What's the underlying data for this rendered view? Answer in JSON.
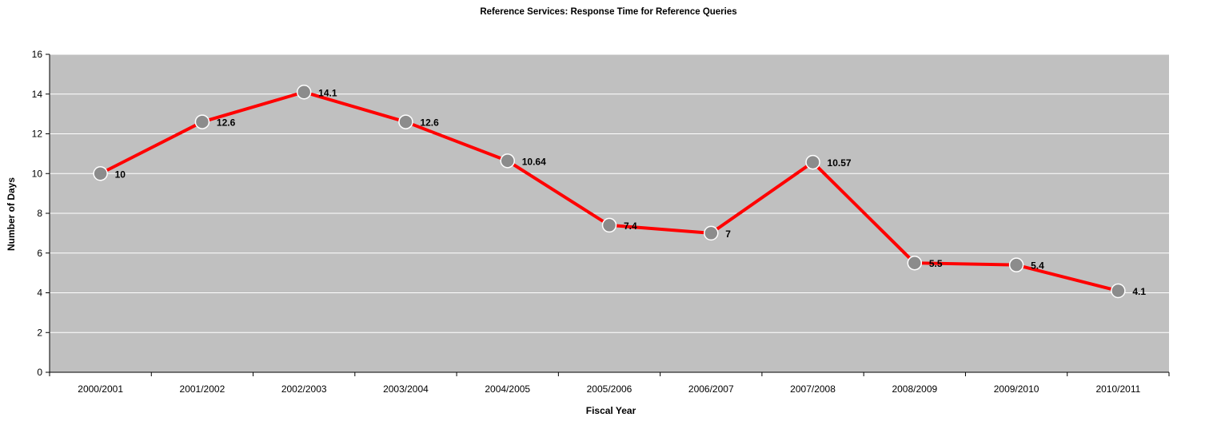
{
  "chart_data": {
    "type": "line",
    "title": "Reference Services: Response Time for Reference Queries",
    "xlabel": "Fiscal Year",
    "ylabel": "Number of Days",
    "categories": [
      "2000/2001",
      "2001/2002",
      "2002/2003",
      "2003/2004",
      "2004/2005",
      "2005/2006",
      "2006/2007",
      "2007/2008",
      "2008/2009",
      "2009/2010",
      "2010/2011"
    ],
    "series": [
      {
        "values": [
          10,
          12.6,
          14.1,
          12.6,
          10.64,
          7.4,
          7,
          10.57,
          5.5,
          5.4,
          4.1
        ],
        "data_labels": [
          "10",
          "12.6",
          "14.1",
          "12.6",
          "10.64",
          "7.4",
          "7",
          "10.57",
          "5.5",
          "5.4",
          "4.1"
        ]
      }
    ],
    "ylim": [
      0,
      16
    ],
    "yticks": [
      "0",
      "2",
      "4",
      "6",
      "8",
      "10",
      "12",
      "14",
      "16"
    ],
    "grid": true,
    "legend": "none",
    "colors": {
      "line": "#ff0000",
      "marker_fill": "#8c8c8c",
      "marker_stroke": "#ffffff",
      "plot_background": "#c0c0c0",
      "gridline": "#ffffff"
    }
  }
}
